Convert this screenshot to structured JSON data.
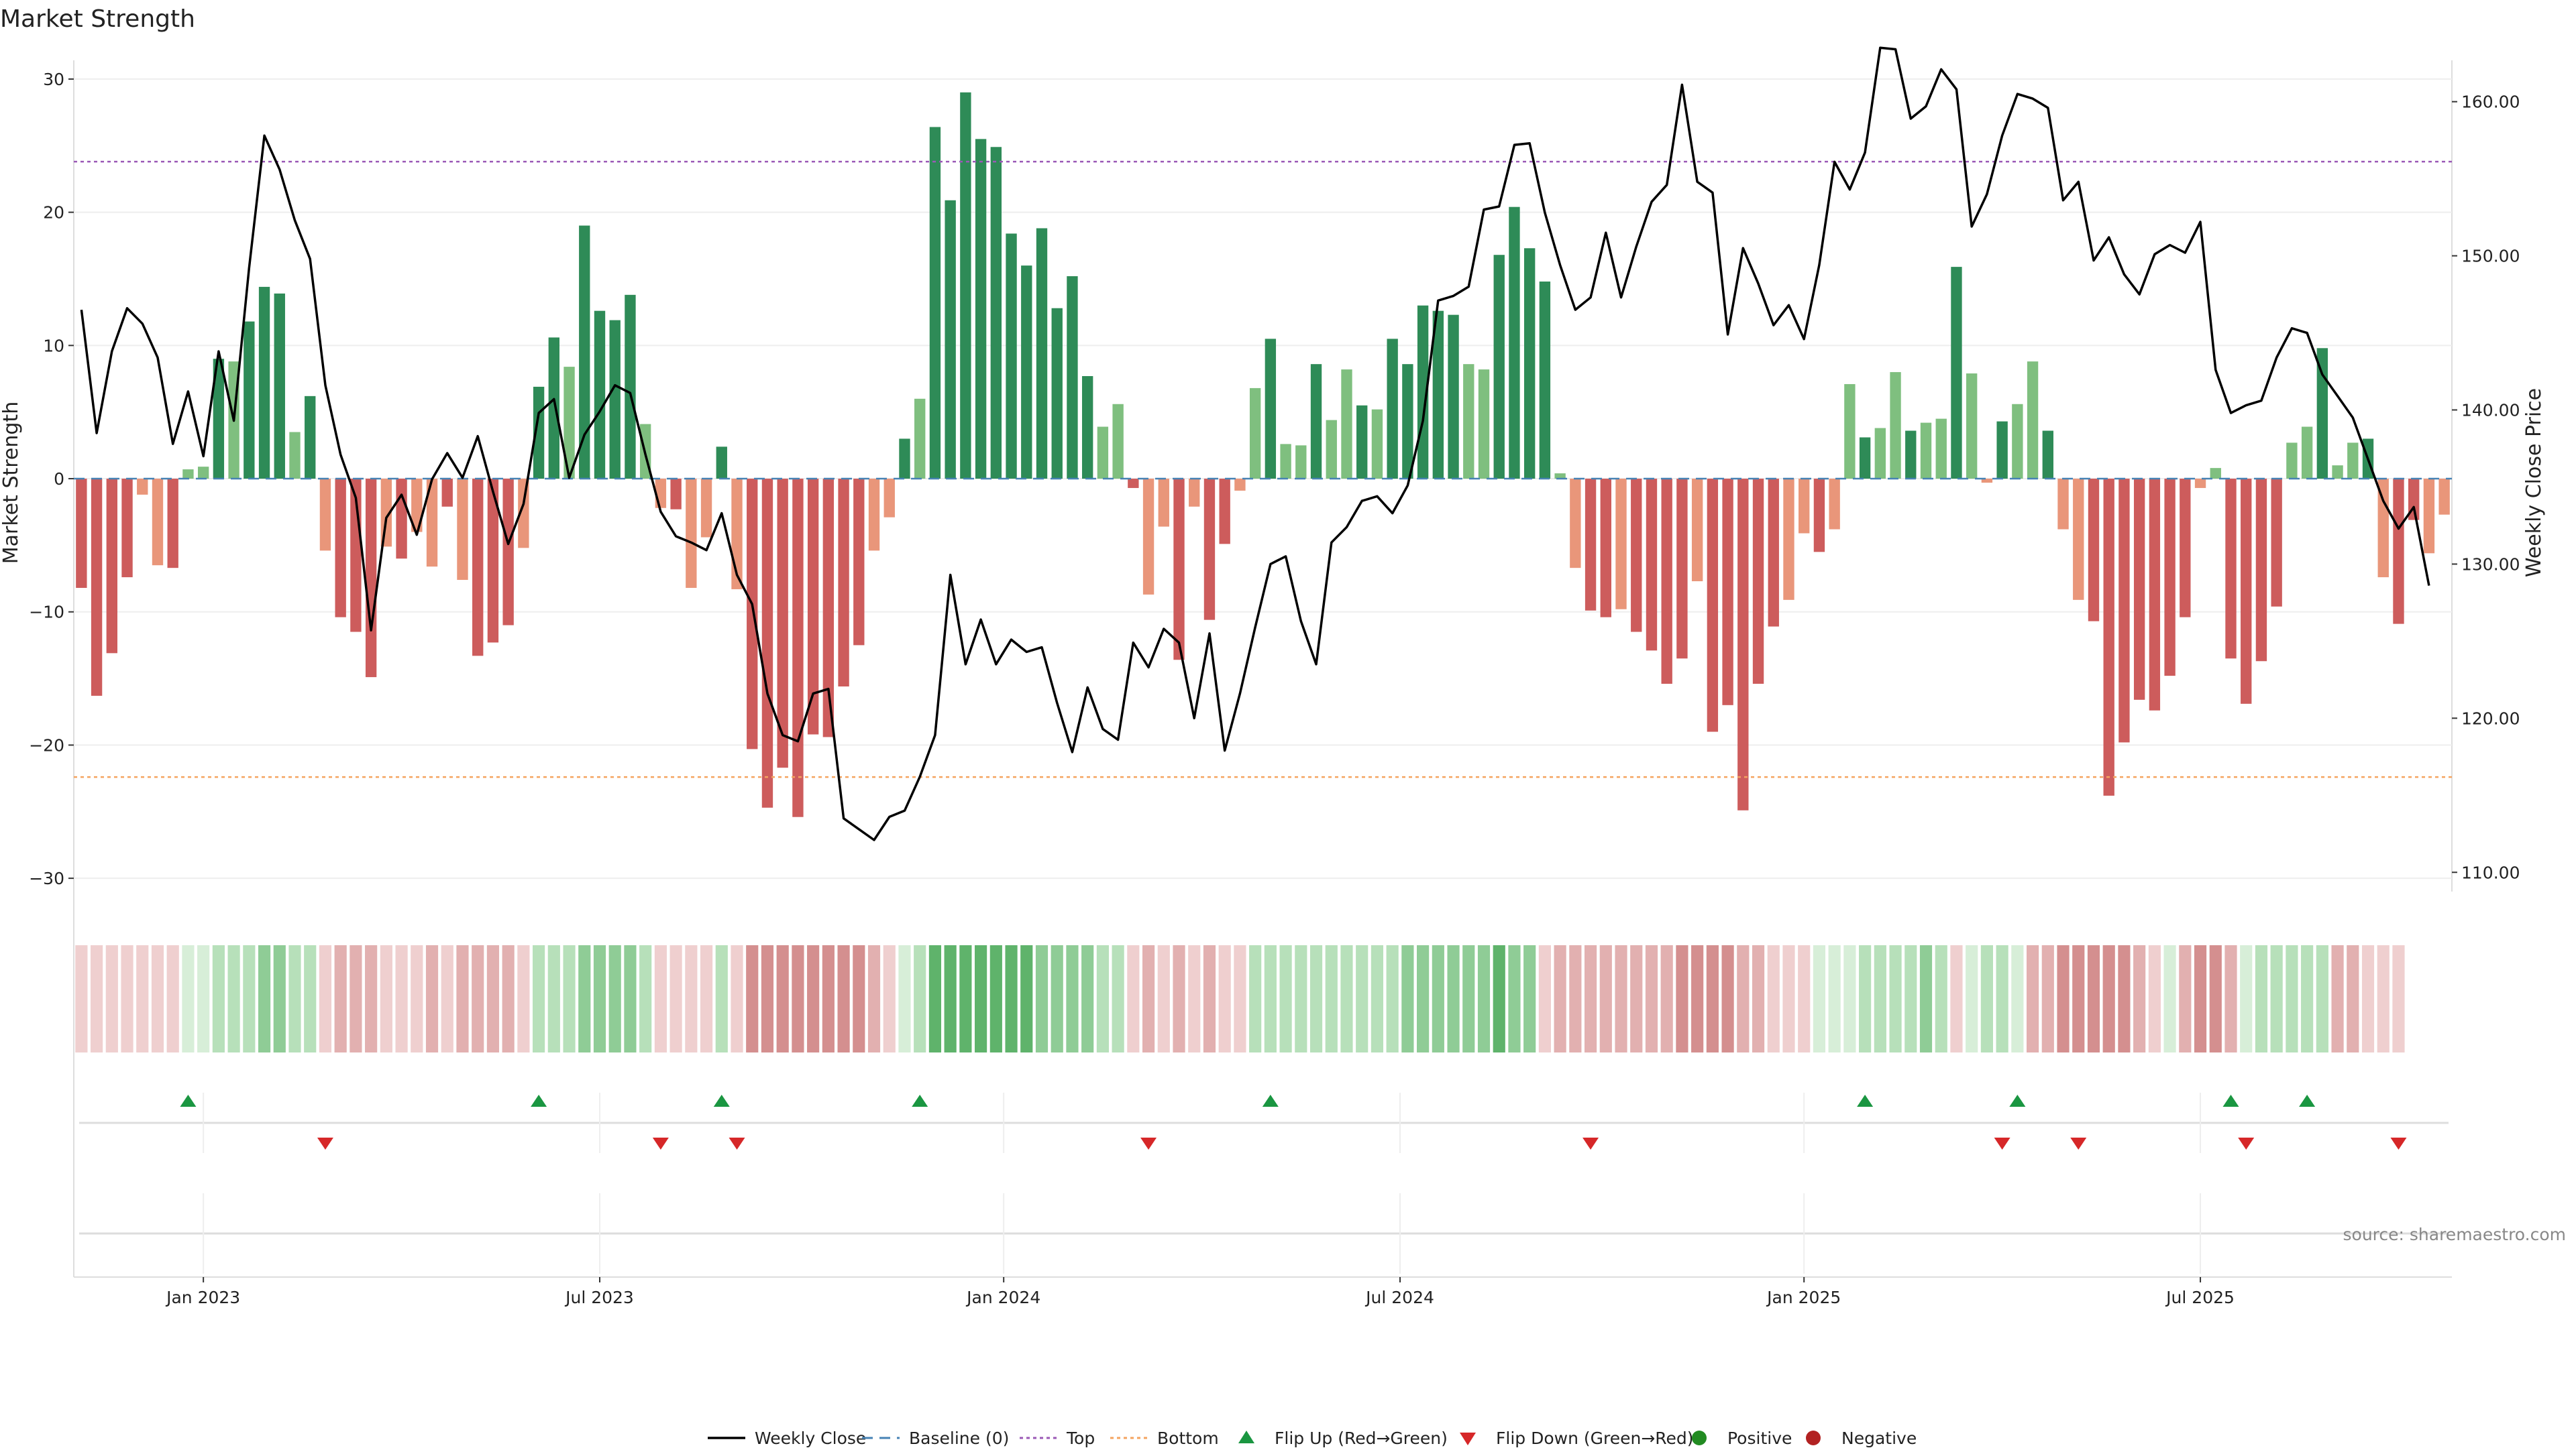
{
  "colors": {
    "pos_dark": "#2e8b57",
    "pos_light": "#7fbf7f",
    "neg_dark": "#cd5c5c",
    "neg_light": "#e9967a",
    "line": "#000000",
    "baseline": "#4682b4",
    "top": "#9b59b6",
    "bottom": "#f4a460",
    "flip_up": "#1a9641",
    "flip_down": "#d62728",
    "positive_dot": "#228b22",
    "negative_dot": "#b22222",
    "grid": "#eeeeee"
  },
  "chart_data": {
    "type": "bar",
    "title": "Market Strength",
    "ylabel": "Market Strength",
    "y2label": "Weekly Close Price",
    "source": "source: sharemaestro.com",
    "ylim": [
      -31,
      30.5
    ],
    "y2lim": [
      108.75,
      161.9
    ],
    "yticks": [
      30,
      20,
      10,
      0,
      -10,
      -20,
      -30
    ],
    "ytick_labels": [
      "30",
      "20",
      "10",
      "0",
      "−10",
      "−20",
      "−30"
    ],
    "y2ticks": [
      160,
      150,
      140,
      130,
      120,
      110
    ],
    "y2tick_labels": [
      "160.00",
      "150.00",
      "140.00",
      "130.00",
      "120.00",
      "110.00"
    ],
    "xticks": [
      {
        "label": "Jan 2023",
        "week": 8
      },
      {
        "label": "Jul 2023",
        "week": 34
      },
      {
        "label": "Jan 2024",
        "week": 60.5
      },
      {
        "label": "Jul 2024",
        "week": 86.5
      },
      {
        "label": "Jan 2025",
        "week": 113
      },
      {
        "label": "Jul 2025",
        "week": 139
      }
    ],
    "top_level": 23.8,
    "bottom_level": -22.4,
    "strength": [
      -8.2,
      -16.3,
      -13.1,
      -7.4,
      -1.2,
      -6.5,
      -6.7,
      0.7,
      0.9,
      9.0,
      8.8,
      11.8,
      14.4,
      13.9,
      3.5,
      6.2,
      -5.4,
      -10.4,
      -11.5,
      -14.9,
      -5.1,
      -6.0,
      -4.0,
      -6.6,
      -2.1,
      -7.6,
      -13.3,
      -12.3,
      -11.0,
      -5.2,
      6.9,
      10.6,
      8.4,
      19.0,
      12.6,
      11.9,
      13.8,
      4.1,
      -2.2,
      -2.3,
      -8.2,
      -4.4,
      2.4,
      -8.3,
      -20.3,
      -24.7,
      -21.7,
      -25.4,
      -19.2,
      -19.4,
      -15.6,
      -12.5,
      -5.4,
      -2.9,
      3.0,
      6.0,
      26.4,
      20.9,
      29.0,
      25.5,
      24.9,
      18.4,
      16.0,
      18.8,
      12.8,
      15.2,
      7.7,
      3.9,
      5.6,
      -0.7,
      -8.7,
      -3.6,
      -13.6,
      -2.1,
      -10.6,
      -4.9,
      -0.9,
      6.8,
      10.5,
      2.6,
      2.5,
      8.6,
      4.4,
      8.2,
      5.5,
      5.2,
      10.5,
      8.6,
      13.0,
      12.6,
      12.3,
      8.6,
      8.2,
      16.8,
      20.4,
      17.3,
      14.8,
      0.4,
      -6.7,
      -9.9,
      -10.4,
      -9.8,
      -11.5,
      -12.9,
      -15.4,
      -13.5,
      -7.7,
      -19.0,
      -17.0,
      -24.9,
      -15.4,
      -11.1,
      -9.1,
      -4.1,
      -5.5,
      -3.8,
      7.1,
      3.1,
      3.8,
      8.0,
      3.6,
      4.2,
      4.5,
      15.9,
      7.9,
      -0.3,
      4.3,
      5.6,
      8.8,
      3.6,
      -3.8,
      -9.1,
      -10.7,
      -23.8,
      -19.8,
      -16.6,
      -17.4,
      -14.8,
      -10.4,
      -0.7,
      0.8,
      -13.5,
      -16.9,
      -13.7,
      -9.6,
      2.7,
      3.9,
      9.8,
      1.0,
      2.7,
      3.0,
      -7.4,
      -10.9,
      -3.1,
      -5.6,
      -2.7
    ],
    "close": [
      146.5,
      138.5,
      143.8,
      146.6,
      145.6,
      143.4,
      137.8,
      141.2,
      137.0,
      143.8,
      139.3,
      149.2,
      157.8,
      155.6,
      152.3,
      149.8,
      141.6,
      137.1,
      134.3,
      125.7,
      133.0,
      134.5,
      131.9,
      135.5,
      137.2,
      135.6,
      138.3,
      134.7,
      131.3,
      133.9,
      139.8,
      140.7,
      135.6,
      138.4,
      139.9,
      141.6,
      141.1,
      137.1,
      133.4,
      131.8,
      131.4,
      130.9,
      133.3,
      129.3,
      127.4,
      121.6,
      118.9,
      118.5,
      121.6,
      121.9,
      113.5,
      112.8,
      112.1,
      113.6,
      114.0,
      116.2,
      118.9,
      129.3,
      123.5,
      126.4,
      123.5,
      125.1,
      124.3,
      124.6,
      121.0,
      117.8,
      122.0,
      119.3,
      118.6,
      124.9,
      123.3,
      125.8,
      124.9,
      120.0,
      125.5,
      117.9,
      121.6,
      125.9,
      130.0,
      130.5,
      126.3,
      123.5,
      131.4,
      132.4,
      134.1,
      134.4,
      133.3,
      135.1,
      139.3,
      147.1,
      147.4,
      148.0,
      153.0,
      153.2,
      157.2,
      157.3,
      152.8,
      149.4,
      146.5,
      147.3,
      151.5,
      147.3,
      150.6,
      153.5,
      154.6,
      161.1,
      154.8,
      154.1,
      144.9,
      150.5,
      148.2,
      145.5,
      146.8,
      144.6,
      149.4,
      156.1,
      154.3,
      156.7,
      163.5,
      163.4,
      158.9,
      159.7,
      162.1,
      160.8,
      151.9,
      154.0,
      157.8,
      160.5,
      160.2,
      159.6,
      153.6,
      154.8,
      149.7,
      151.2,
      148.8,
      147.5,
      150.1,
      150.7,
      150.2,
      152.2,
      142.6,
      139.8,
      140.3,
      140.6,
      143.4,
      145.3,
      145.0,
      142.3,
      140.9,
      139.5,
      136.8,
      134.1,
      132.3,
      133.7,
      128.6
    ],
    "heat": [
      -1,
      -1,
      -1,
      -1,
      -1,
      -1,
      -1,
      1,
      1,
      2,
      2,
      2,
      3,
      3,
      2,
      2,
      -1,
      -2,
      -2,
      -2,
      -1,
      -1,
      -1,
      -2,
      -1,
      -2,
      -2,
      -2,
      -2,
      -1,
      2,
      2,
      2,
      3,
      3,
      3,
      3,
      2,
      -1,
      -1,
      -1,
      -1,
      2,
      -1,
      -3,
      -3,
      -3,
      -3,
      -3,
      -3,
      -3,
      -3,
      -2,
      -1,
      1,
      2,
      4,
      4,
      4,
      4,
      4,
      4,
      4,
      3,
      3,
      3,
      3,
      2,
      2,
      -1,
      -2,
      -1,
      -2,
      -1,
      -2,
      -1,
      -1,
      2,
      2,
      2,
      2,
      2,
      2,
      2,
      2,
      2,
      2,
      3,
      3,
      3,
      3,
      3,
      3,
      4,
      3,
      3,
      -1,
      -2,
      -2,
      -2,
      -2,
      -2,
      -2,
      -2,
      -2,
      -3,
      -3,
      -3,
      -3,
      -2,
      -2,
      -1,
      -1,
      -1,
      1,
      1,
      1,
      2,
      2,
      2,
      2,
      3,
      2,
      -1,
      1,
      2,
      2,
      1,
      -2,
      -2,
      -3,
      -3,
      -3,
      -3,
      -3,
      -2,
      -1,
      1,
      -2,
      -3,
      -3,
      -2,
      1,
      2,
      2,
      2,
      2,
      2,
      -2,
      -2,
      -1,
      -1,
      -1
    ],
    "flip_up_weeks": [
      7,
      30,
      42,
      55,
      78,
      117,
      127,
      141,
      146
    ],
    "flip_down_weeks": [
      16,
      38,
      43,
      70,
      99,
      126,
      131,
      142,
      152
    ],
    "legend": [
      {
        "label": "Weekly Close",
        "kind": "line"
      },
      {
        "label": "Baseline (0)",
        "kind": "dash-blue"
      },
      {
        "label": "Top",
        "kind": "dot-purple"
      },
      {
        "label": "Bottom",
        "kind": "dot-orange"
      },
      {
        "label": "Flip Up (Red→Green)",
        "kind": "tri-up"
      },
      {
        "label": "Flip Down (Green→Red)",
        "kind": "tri-down"
      },
      {
        "label": "Positive",
        "kind": "dot-green"
      },
      {
        "label": "Negative",
        "kind": "dot-red"
      }
    ]
  }
}
